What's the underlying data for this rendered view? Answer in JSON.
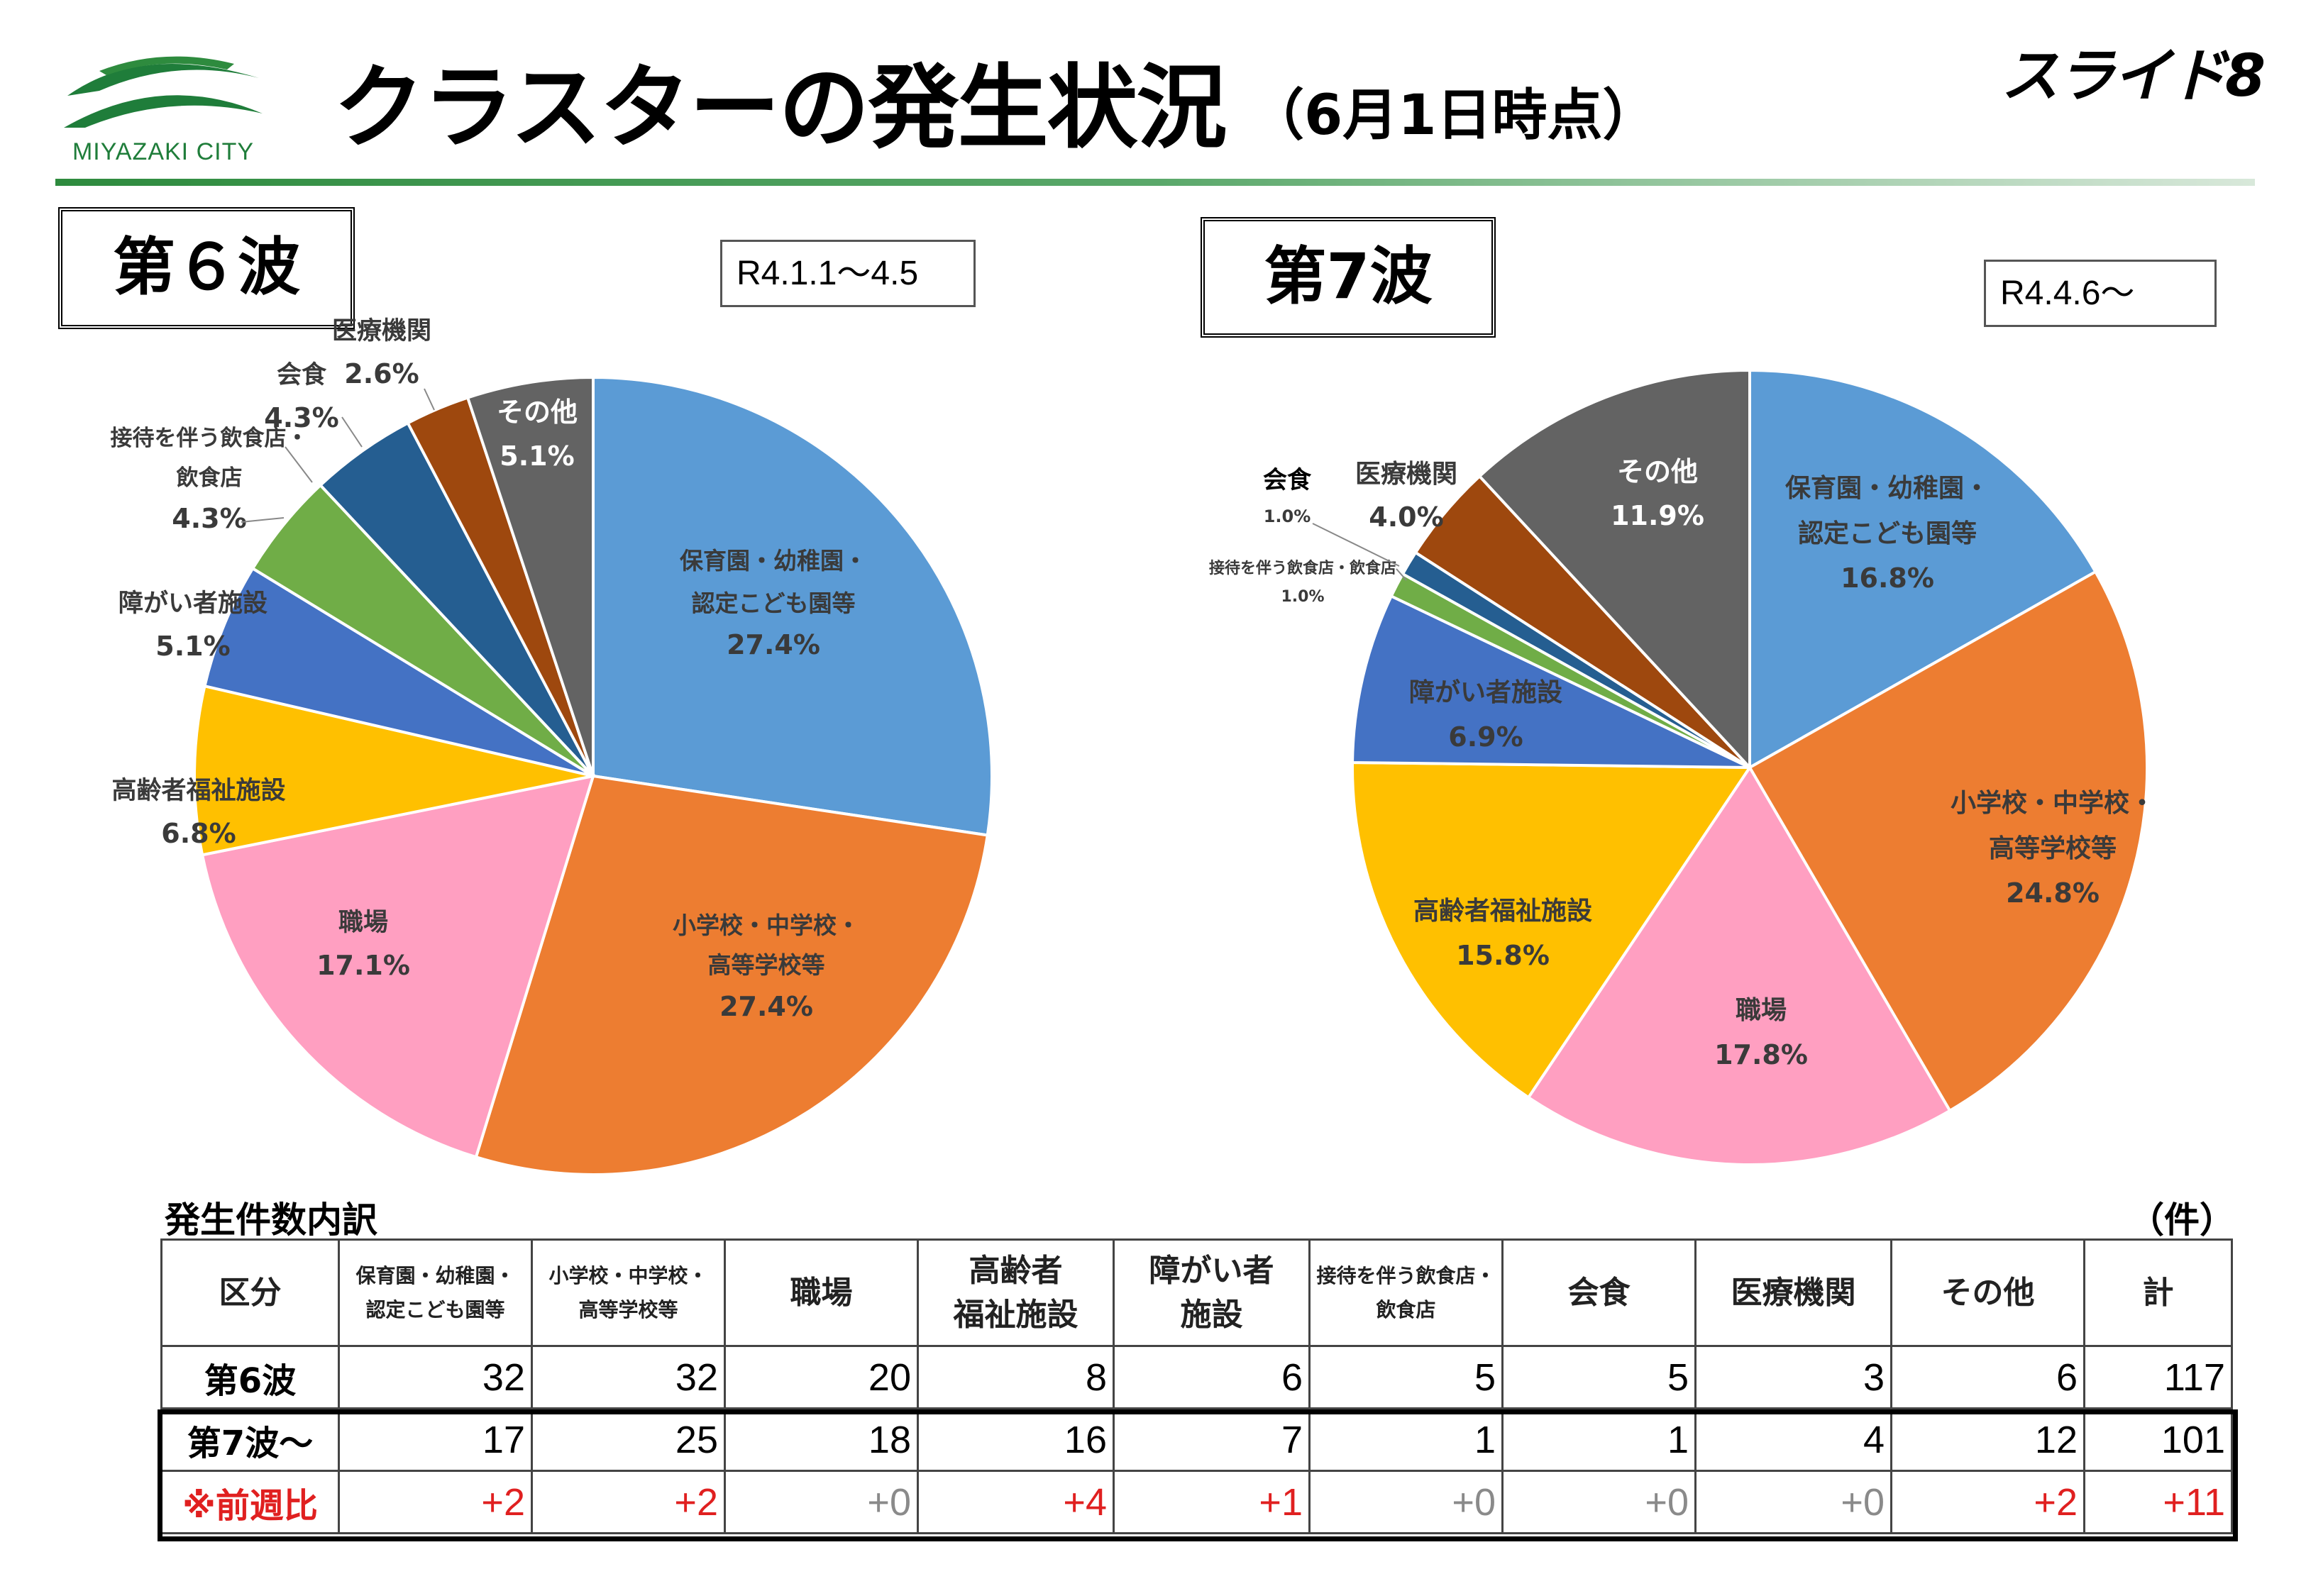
{
  "header": {
    "logo_text": "MIYAZAKI CITY",
    "title": "クラスターの発生状況",
    "title_sub": "（6月1日時点）",
    "slide_number": "スライド8"
  },
  "colors": {
    "blue": "#5b9bd5",
    "orange": "#ed7d31",
    "pink": "#ff9fc1",
    "yellow": "#ffc000",
    "royal": "#4472c4",
    "green": "#70ad47",
    "navy": "#255e91",
    "brown": "#9e480e",
    "gray": "#636363",
    "accent_green": "#2e8b3e",
    "delta_red": "#e02020"
  },
  "wave6": {
    "label": "第６波",
    "range": "R4.1.1～4.5"
  },
  "wave7": {
    "label": "第7波",
    "range": "R4.4.6～"
  },
  "chart_data": [
    {
      "type": "pie",
      "title": "第６波",
      "subtitle": "R4.1.1～4.5",
      "slices": [
        {
          "name": "保育園・幼稚園・認定こども園等",
          "value": 27.4,
          "label": "27.4%",
          "color": "#5b9bd5"
        },
        {
          "name": "小学校・中学校・高等学校等",
          "value": 27.4,
          "label": "27.4%",
          "color": "#ed7d31"
        },
        {
          "name": "職場",
          "value": 17.1,
          "label": "17.1%",
          "color": "#ff9fc1"
        },
        {
          "name": "高齢者福祉施設",
          "value": 6.8,
          "label": "6.8%",
          "color": "#ffc000"
        },
        {
          "name": "障がい者施設",
          "value": 5.1,
          "label": "5.1%",
          "color": "#4472c4"
        },
        {
          "name": "接待を伴う飲食店・飲食店",
          "value": 4.3,
          "label": "4.3%",
          "color": "#70ad47"
        },
        {
          "name": "会食",
          "value": 4.3,
          "label": "4.3%",
          "color": "#255e91"
        },
        {
          "name": "医療機関",
          "value": 2.6,
          "label": "2.6%",
          "color": "#9e480e"
        },
        {
          "name": "その他",
          "value": 5.1,
          "label": "5.1%",
          "color": "#636363"
        }
      ]
    },
    {
      "type": "pie",
      "title": "第7波",
      "subtitle": "R4.4.6～",
      "slices": [
        {
          "name": "保育園・幼稚園・認定こども園等",
          "value": 16.8,
          "label": "16.8%",
          "color": "#5b9bd5"
        },
        {
          "name": "小学校・中学校・高等学校等",
          "value": 24.8,
          "label": "24.8%",
          "color": "#ed7d31"
        },
        {
          "name": "職場",
          "value": 17.8,
          "label": "17.8%",
          "color": "#ff9fc1"
        },
        {
          "name": "高齢者福祉施設",
          "value": 15.8,
          "label": "15.8%",
          "color": "#ffc000"
        },
        {
          "name": "障がい者施設",
          "value": 6.9,
          "label": "6.9%",
          "color": "#4472c4"
        },
        {
          "name": "接待を伴う飲食店・飲食店",
          "value": 1.0,
          "label": "1.0%",
          "color": "#70ad47"
        },
        {
          "name": "会食",
          "value": 1.0,
          "label": "1.0%",
          "color": "#255e91"
        },
        {
          "name": "医療機関",
          "value": 4.0,
          "label": "4.0%",
          "color": "#9e480e"
        },
        {
          "name": "その他",
          "value": 11.9,
          "label": "11.9%",
          "color": "#636363"
        }
      ]
    }
  ],
  "pie_labels": {
    "w6": {
      "hoiku_1": "保育園・幼稚園・",
      "hoiku_2": "認定こども園等",
      "sho_1": "小学校・中学校・",
      "sho_2": "高等学校等",
      "shokuba": "職場",
      "koreisha": "高齢者福祉施設",
      "shogai": "障がい者施設",
      "settai_1": "接待を伴う飲食店・",
      "settai_2": "飲食店",
      "kaishoku": "会食",
      "iryo": "医療機関",
      "sonota": "その他"
    },
    "w7": {
      "hoiku_1": "保育園・幼稚園・",
      "hoiku_2": "認定こども園等",
      "sho_1": "小学校・中学校・",
      "sho_2": "高等学校等",
      "shokuba": "職場",
      "koreisha": "高齢者福祉施設",
      "shogai": "障がい者施設",
      "settai": "接待を伴う飲食店・飲食店",
      "kaishoku": "会食",
      "iryo": "医療機関",
      "sonota": "その他"
    }
  },
  "table": {
    "caption": "発生件数内訳",
    "unit": "（件）",
    "headers": {
      "kubun": "区分",
      "hoiku_1": "保育園・幼稚園・",
      "hoiku_2": "認定こども園等",
      "sho_1": "小学校・中学校・",
      "sho_2": "高等学校等",
      "shokuba": "職場",
      "koreisha_1": "高齢者",
      "koreisha_2": "福祉施設",
      "shogai_1": "障がい者",
      "shogai_2": "施設",
      "settai_1": "接待を伴う飲食店・",
      "settai_2": "飲食店",
      "kaishoku": "会食",
      "iryo": "医療機関",
      "sonota": "その他",
      "total": "計"
    },
    "rows": [
      {
        "label": "第6波",
        "values": [
          "32",
          "32",
          "20",
          "8",
          "6",
          "5",
          "5",
          "3",
          "6",
          "117"
        ]
      },
      {
        "label": "第7波～",
        "values": [
          "17",
          "25",
          "18",
          "16",
          "7",
          "1",
          "1",
          "4",
          "12",
          "101"
        ]
      },
      {
        "label": "※前週比",
        "values": [
          "+2",
          "+2",
          "+0",
          "+4",
          "+1",
          "+0",
          "+0",
          "+0",
          "+2",
          "+11"
        ]
      }
    ]
  }
}
